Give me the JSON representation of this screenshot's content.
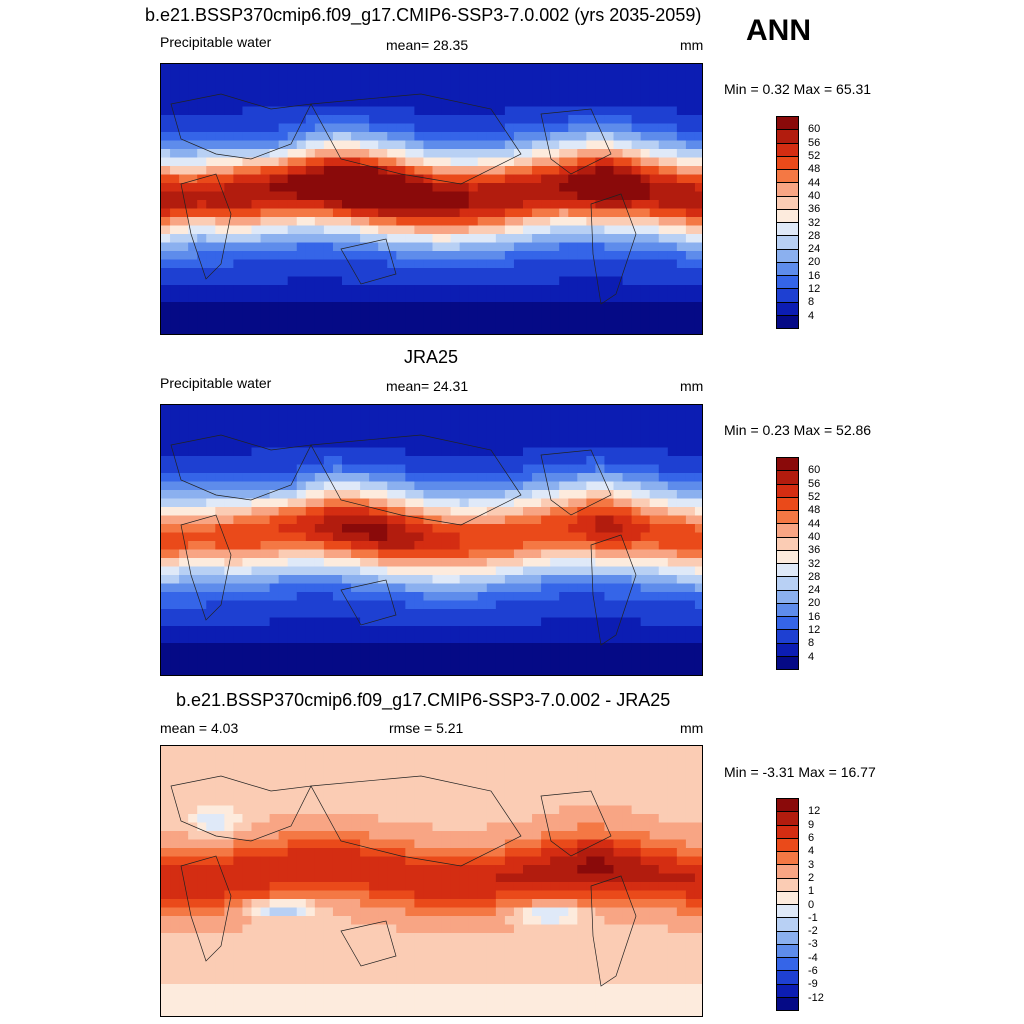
{
  "season": "ANN",
  "panels": [
    {
      "title": "b.e21.BSSP370cmip6.f09_g17.CMIP6-SSP3-7.0.002 (yrs 2035-2059)",
      "left": "Precipitable water",
      "center": "mean=  28.35",
      "right": "mm",
      "minmax": "Min =   0.32 Max =  65.31",
      "levels": [
        "60",
        "56",
        "52",
        "48",
        "44",
        "40",
        "36",
        "32",
        "28",
        "24",
        "20",
        "16",
        "12",
        "8",
        "4"
      ]
    },
    {
      "title": "JRA25",
      "left": "Precipitable water",
      "center": "mean=  24.31",
      "right": "mm",
      "minmax": "Min =   0.23 Max =  52.86",
      "levels": [
        "60",
        "56",
        "52",
        "48",
        "44",
        "40",
        "36",
        "32",
        "28",
        "24",
        "20",
        "16",
        "12",
        "8",
        "4"
      ]
    },
    {
      "title": "b.e21.BSSP370cmip6.f09_g17.CMIP6-SSP3-7.0.002 - JRA25",
      "left": "mean =   4.03",
      "center": "rmse =   5.21",
      "right": "mm",
      "minmax": "Min =  -3.31 Max =  16.77",
      "levels": [
        "12",
        "9",
        "6",
        "4",
        "3",
        "2",
        "1",
        "0",
        "-1",
        "-2",
        "-3",
        "-4",
        "-6",
        "-9",
        "-12"
      ]
    }
  ],
  "colors": {
    "colorbar_top_to_bottom": [
      "#8a0a0a",
      "#b21c0e",
      "#d42d12",
      "#ea4a1a",
      "#f47844",
      "#f8a584",
      "#fbccb4",
      "#fdebdd",
      "#dfe9f8",
      "#b8d0f4",
      "#8bb0ef",
      "#5e8ceb",
      "#3565e8",
      "#1e40d2",
      "#0c1db3",
      "#050a86"
    ]
  },
  "map_data": [
    {
      "field": "precipitable-water-model",
      "eq_max": 1.0
    },
    {
      "field": "precipitable-water-reanalysis",
      "eq_max": 0.82
    },
    {
      "field": "difference",
      "eq_max": 1.0
    }
  ]
}
